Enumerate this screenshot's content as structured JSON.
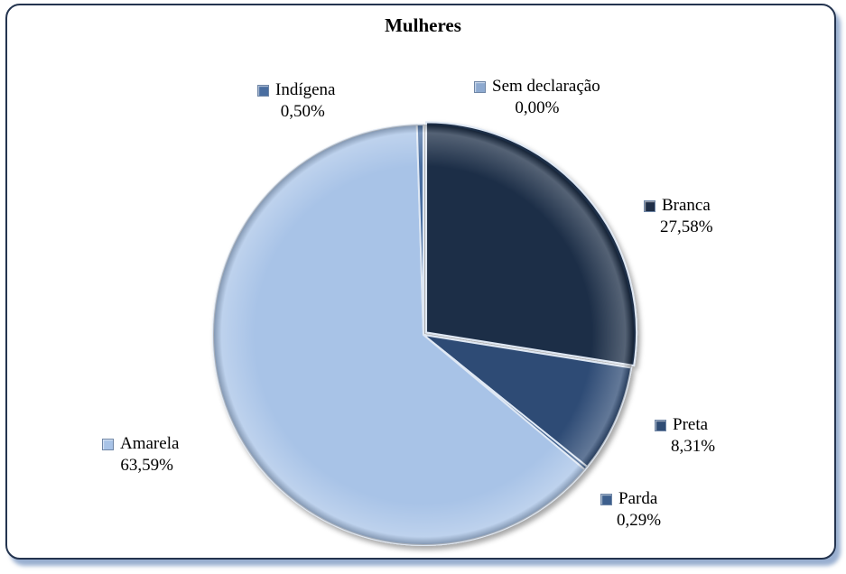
{
  "chart_data": {
    "type": "pie",
    "title": "Mulheres",
    "slices": [
      {
        "name": "Sem declaração",
        "value": 0.0,
        "label": "0,00%",
        "color": "#8eaad0"
      },
      {
        "name": "Branca",
        "value": 27.58,
        "label": "27,58%",
        "color": "#1f2e47"
      },
      {
        "name": "Preta",
        "value": 8.31,
        "label": "8,31%",
        "color": "#2f4c74"
      },
      {
        "name": "Parda",
        "value": 0.29,
        "label": "0,29%",
        "color": "#3d5f8d"
      },
      {
        "name": "Amarela",
        "value": 63.59,
        "label": "63,59%",
        "color": "#a8c3e7"
      },
      {
        "name": "Indígena",
        "value": 0.5,
        "label": "0,50%",
        "color": "#4a6ea0"
      }
    ]
  }
}
